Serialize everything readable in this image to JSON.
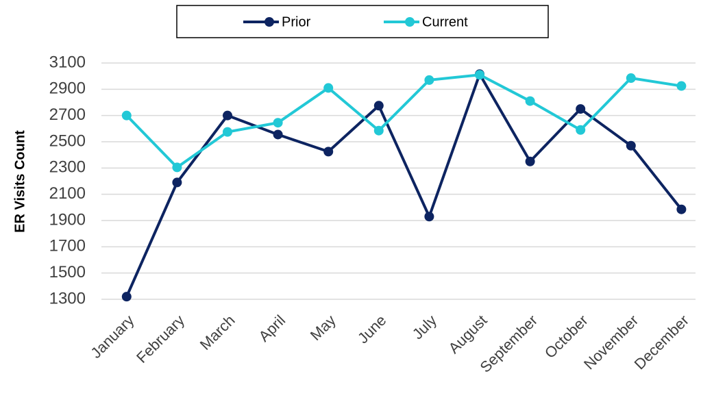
{
  "chart_data": {
    "type": "line",
    "y_label": "ER Visits Count",
    "categories": [
      "January",
      "February",
      "March",
      "April",
      "May",
      "June",
      "July",
      "August",
      "September",
      "October",
      "November",
      "December"
    ],
    "series": [
      {
        "name": "Prior",
        "color": "#0d2461",
        "values": [
          1320,
          2190,
          2700,
          2555,
          2425,
          2775,
          1930,
          3015,
          2350,
          2750,
          2470,
          1985
        ]
      },
      {
        "name": "Current",
        "color": "#22c8d6",
        "values": [
          2700,
          2305,
          2575,
          2645,
          2910,
          2585,
          2970,
          3010,
          2810,
          2590,
          2985,
          2925
        ]
      }
    ],
    "ylim": [
      1300,
      3100
    ],
    "yticks": [
      1300,
      1500,
      1700,
      1900,
      2100,
      2300,
      2500,
      2700,
      2900,
      3100
    ],
    "grid": true,
    "legend": "top"
  }
}
